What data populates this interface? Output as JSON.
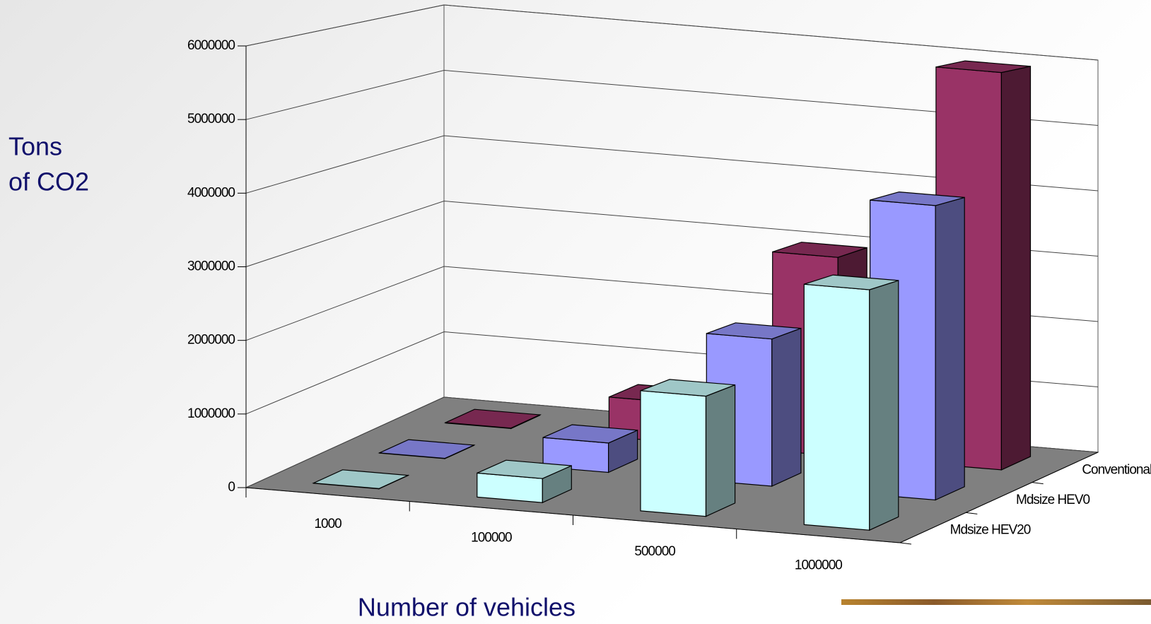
{
  "chart_data": {
    "type": "bar3d",
    "y_label": [
      "Tons",
      "of CO2"
    ],
    "x_label": "Number of vehicles",
    "categories": [
      "1000",
      "100000",
      "500000",
      "1000000"
    ],
    "series": [
      {
        "name": "Conventional",
        "color": "#993366",
        "values": [
          5900,
          590000,
          2950000,
          5900000
        ]
      },
      {
        "name": "Mdsize HEV0",
        "color": "#9999ff",
        "values": [
          4200,
          420000,
          2100000,
          4200000
        ]
      },
      {
        "name": "Mdsize HEV20",
        "color": "#ccffff",
        "values": [
          3300,
          330000,
          1650000,
          3300000
        ]
      }
    ],
    "ylim": [
      0,
      6000000
    ],
    "yticks": [
      0,
      1000000,
      2000000,
      3000000,
      4000000,
      5000000,
      6000000
    ],
    "grid": true
  }
}
